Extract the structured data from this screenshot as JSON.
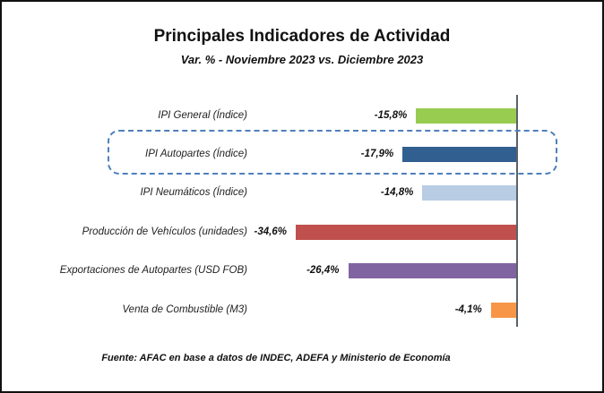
{
  "chart_data": {
    "type": "bar",
    "orientation": "horizontal",
    "title": "Principales Indicadores de Actividad",
    "subtitle": "Var. % - Noviembre 2023 vs. Diciembre 2023",
    "categories": [
      "IPI General (Índice)",
      "IPI Autopartes (Índice)",
      "IPI Neumáticos (Índice)",
      "Producción de Vehículos (unidades)",
      "Exportaciones de Autopartes (USD FOB)",
      "Venta de Combustible (M3)"
    ],
    "values": [
      -15.8,
      -17.9,
      -14.8,
      -34.6,
      -26.4,
      -4.1
    ],
    "value_labels": [
      "-15,8%",
      "-17,9%",
      "-14,8%",
      "-34,6%",
      "-26,4%",
      "-4,1%"
    ],
    "bar_colors": [
      "#97cc50",
      "#315f8f",
      "#b8cce4",
      "#c0504d",
      "#8064a2",
      "#f79646"
    ],
    "highlighted_category": "IPI Autopartes (Índice)",
    "highlight_border_color": "#4e80bc",
    "xlim": [
      -40,
      0
    ],
    "grid": false,
    "legend": "none",
    "source": "Fuente: AFAC en base a datos de INDEC, ADEFA y Ministerio de Economía"
  }
}
